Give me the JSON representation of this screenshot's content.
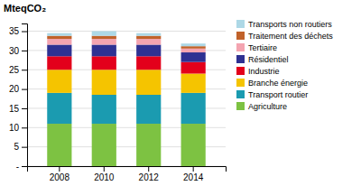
{
  "chart_data": {
    "type": "bar",
    "stacked": true,
    "ylabel": "MteqCO₂",
    "categories": [
      "2008",
      "2010",
      "2012",
      "2014"
    ],
    "series": [
      {
        "name": "Agriculture",
        "color": "#7DC242",
        "values": [
          11.0,
          11.0,
          11.0,
          11.0
        ]
      },
      {
        "name": "Transport routier",
        "color": "#1B9BB0",
        "values": [
          8.0,
          7.5,
          7.5,
          8.0
        ]
      },
      {
        "name": "Branche énergie",
        "color": "#F5C400",
        "values": [
          6.0,
          6.5,
          6.5,
          5.0
        ]
      },
      {
        "name": "Industrie",
        "color": "#E3001B",
        "values": [
          3.5,
          3.5,
          3.5,
          3.0
        ]
      },
      {
        "name": "Résidentiel",
        "color": "#2E3192",
        "values": [
          3.0,
          3.0,
          3.0,
          2.5
        ]
      },
      {
        "name": "Tertiaire",
        "color": "#F4A4B0",
        "values": [
          1.5,
          1.5,
          1.5,
          1.0
        ]
      },
      {
        "name": "Traitement des déchets",
        "color": "#C1622A",
        "values": [
          0.8,
          0.8,
          0.8,
          0.6
        ]
      },
      {
        "name": "Transports non routiers",
        "color": "#ADD8E6",
        "values": [
          0.7,
          1.2,
          0.7,
          0.7
        ]
      }
    ],
    "ylim": [
      0,
      37
    ],
    "yticks": [
      {
        "value": 0,
        "label": "-"
      },
      5,
      10,
      15,
      20,
      25,
      30,
      35
    ],
    "grid": true,
    "legend": "right"
  }
}
